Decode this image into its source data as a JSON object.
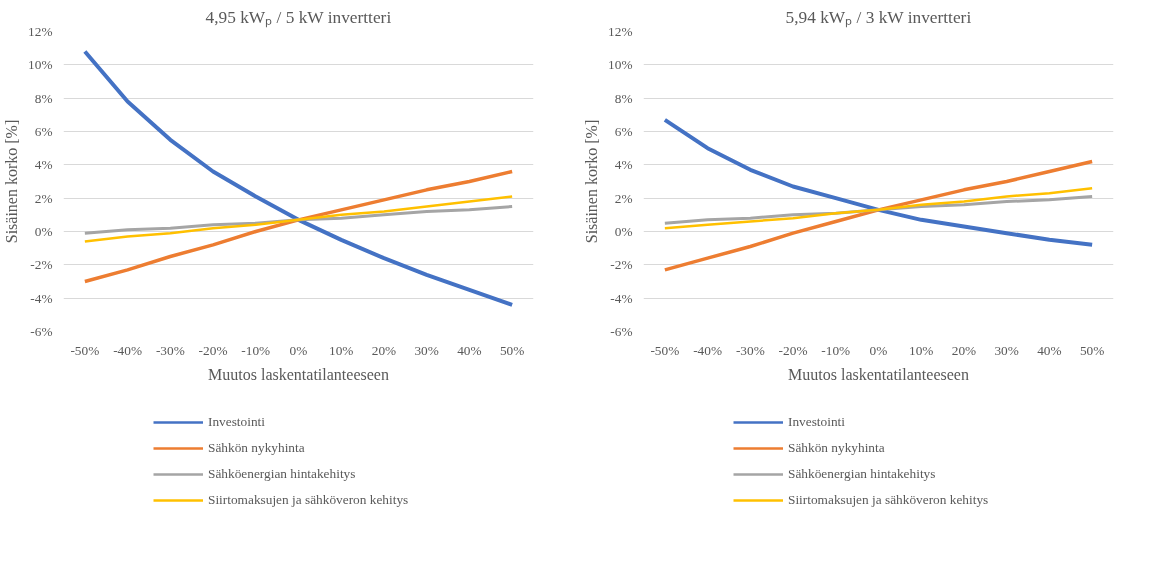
{
  "chart_data": [
    {
      "type": "line",
      "title": "4,95 kWₚ / 5 kW invertteri",
      "xlabel": "Muutos laskentatilanteeseen",
      "ylabel": "Sisäinen korko [%]",
      "categories": [
        "-50%",
        "-40%",
        "-30%",
        "-20%",
        "-10%",
        "0%",
        "10%",
        "20%",
        "30%",
        "40%",
        "50%"
      ],
      "ylim": [
        -6,
        12
      ],
      "yticks": [
        {
          "value": -6,
          "label": "-6%"
        },
        {
          "value": -4,
          "label": "-4%"
        },
        {
          "value": -2,
          "label": "-2%"
        },
        {
          "value": 0,
          "label": "0%"
        },
        {
          "value": 2,
          "label": "2%"
        },
        {
          "value": 4,
          "label": "4%"
        },
        {
          "value": 6,
          "label": "6%"
        },
        {
          "value": 8,
          "label": "8%"
        },
        {
          "value": 10,
          "label": "10%"
        },
        {
          "value": 12,
          "label": "12%"
        }
      ],
      "grid": "y",
      "legend": "bottom",
      "marker": "none",
      "line_style": "solid",
      "series": [
        {
          "name": "Investointi",
          "color": "#4472c4",
          "values": [
            10.8,
            7.8,
            5.5,
            3.6,
            2.1,
            0.7,
            -0.5,
            -1.6,
            -2.6,
            -3.5,
            -4.4
          ]
        },
        {
          "name": "Sähkön nykyhinta",
          "color": "#ed7d31",
          "values": [
            -3.0,
            -2.3,
            -1.5,
            -0.8,
            0.0,
            0.7,
            1.3,
            1.9,
            2.5,
            3.0,
            3.6
          ]
        },
        {
          "name": "Sähköenergian hintakehitys",
          "color": "#a5a5a5",
          "values": [
            -0.1,
            0.1,
            0.2,
            0.4,
            0.5,
            0.7,
            0.8,
            1.0,
            1.2,
            1.3,
            1.5
          ]
        },
        {
          "name": "Siirtomaksujen ja sähköveron kehitys",
          "color": "#ffc000",
          "values": [
            -0.6,
            -0.3,
            -0.1,
            0.2,
            0.4,
            0.7,
            1.0,
            1.2,
            1.5,
            1.8,
            2.1
          ]
        }
      ]
    },
    {
      "type": "line",
      "title": "5,94 kWₚ / 3 kW invertteri",
      "xlabel": "Muutos laskentatilanteeseen",
      "ylabel": "Sisäinen korko [%]",
      "categories": [
        "-50%",
        "-40%",
        "-30%",
        "-20%",
        "-10%",
        "0%",
        "10%",
        "20%",
        "30%",
        "40%",
        "50%"
      ],
      "ylim": [
        -6,
        12
      ],
      "yticks": [
        {
          "value": -6,
          "label": "-6%"
        },
        {
          "value": -4,
          "label": "-4%"
        },
        {
          "value": -2,
          "label": "-2%"
        },
        {
          "value": 0,
          "label": "0%"
        },
        {
          "value": 2,
          "label": "2%"
        },
        {
          "value": 4,
          "label": "4%"
        },
        {
          "value": 6,
          "label": "6%"
        },
        {
          "value": 8,
          "label": "8%"
        },
        {
          "value": 10,
          "label": "10%"
        },
        {
          "value": 12,
          "label": "12%"
        }
      ],
      "grid": "y",
      "legend": "bottom",
      "marker": "none",
      "line_style": "solid",
      "series": [
        {
          "name": "Investointi",
          "color": "#4472c4",
          "values": [
            6.7,
            5.0,
            3.7,
            2.7,
            2.0,
            1.3,
            0.7,
            0.3,
            -0.1,
            -0.5,
            -0.8
          ]
        },
        {
          "name": "Sähkön nykyhinta",
          "color": "#ed7d31",
          "values": [
            -2.3,
            -1.6,
            -0.9,
            -0.1,
            0.6,
            1.3,
            1.9,
            2.5,
            3.0,
            3.6,
            4.2
          ]
        },
        {
          "name": "Sähköenergian hintakehitys",
          "color": "#a5a5a5",
          "values": [
            0.5,
            0.7,
            0.8,
            1.0,
            1.1,
            1.3,
            1.5,
            1.6,
            1.8,
            1.9,
            2.1
          ]
        },
        {
          "name": "Siirtomaksujen ja sähköveron kehitys",
          "color": "#ffc000",
          "values": [
            0.2,
            0.4,
            0.6,
            0.8,
            1.1,
            1.3,
            1.6,
            1.8,
            2.1,
            2.3,
            2.6
          ]
        }
      ]
    }
  ]
}
